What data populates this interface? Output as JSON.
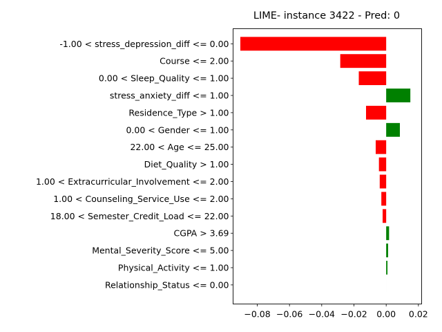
{
  "chart_data": {
    "type": "bar",
    "orientation": "horizontal",
    "title": "LIME- instance 3422 - Pred: 0",
    "xlabel": "",
    "ylabel": "",
    "xlim": [
      -0.095,
      0.022
    ],
    "xticks": [
      -0.08,
      -0.06,
      -0.04,
      -0.02,
      0.0,
      0.02
    ],
    "xtick_labels": [
      "−0.08",
      "−0.06",
      "−0.04",
      "−0.02",
      "0.00",
      "0.02"
    ],
    "grid": false,
    "colors": {
      "negative": "#ff0000",
      "positive": "#008000"
    },
    "categories": [
      "-1.00 < stress_depression_diff <= 0.00",
      "Course <= 2.00",
      "0.00 < Sleep_Quality <= 1.00",
      "stress_anxiety_diff <= 1.00",
      "Residence_Type > 1.00",
      "0.00 < Gender <= 1.00",
      "22.00 < Age <= 25.00",
      "Diet_Quality > 1.00",
      "1.00 < Extracurricular_Involvement <= 2.00",
      "1.00 < Counseling_Service_Use <= 2.00",
      "18.00 < Semester_Credit_Load <= 22.00",
      "CGPA > 3.69",
      "Mental_Severity_Score <= 5.00",
      "Physical_Activity <= 1.00",
      "Relationship_Status <= 0.00"
    ],
    "values": [
      -0.0905,
      -0.0285,
      -0.017,
      0.015,
      -0.0125,
      0.0085,
      -0.0065,
      -0.0045,
      -0.004,
      -0.003,
      -0.0022,
      0.0018,
      0.0012,
      0.0008,
      0.0
    ]
  }
}
